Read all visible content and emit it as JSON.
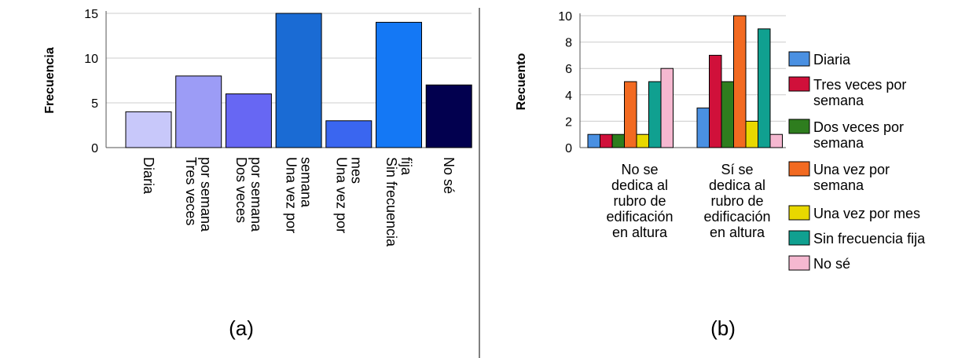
{
  "chart_data": [
    {
      "panel_label": "(a)",
      "type": "bar",
      "ylabel": "Frecuencia",
      "xlabel": "",
      "ylim": [
        0,
        15
      ],
      "yticks": [
        0,
        5,
        10,
        15
      ],
      "grid": "horizontal",
      "categories": [
        [
          "Diaria"
        ],
        [
          "Tres veces",
          "por semana"
        ],
        [
          "Dos veces",
          "por semana"
        ],
        [
          "Una vez por",
          "semana"
        ],
        [
          "Una vez por",
          "mes"
        ],
        [
          "Sin frecuencia",
          "fija"
        ],
        [
          "No sé"
        ]
      ],
      "values": [
        4,
        8,
        6,
        15,
        3,
        14,
        7
      ],
      "colors": [
        "#c8c8fa",
        "#9c9cf6",
        "#6767f3",
        "#1a6bd4",
        "#3a66f0",
        "#1478f5",
        "#02004f"
      ]
    },
    {
      "panel_label": "(b)",
      "type": "bar",
      "ylabel": "Recuento",
      "xlabel": "",
      "ylim": [
        0,
        10
      ],
      "yticks": [
        0,
        2,
        4,
        6,
        8,
        10
      ],
      "grid": "horizontal",
      "legend": "right",
      "categories": [
        [
          "No se",
          "dedica al",
          "rubro de",
          "edificación",
          "en altura"
        ],
        [
          "Sí se",
          "dedica al",
          "rubro de",
          "edificación",
          "en altura"
        ]
      ],
      "series": [
        {
          "name": [
            "Diaria"
          ],
          "color": "#4a90e2",
          "values": [
            1,
            3
          ]
        },
        {
          "name": [
            "Tres veces por",
            "semana"
          ],
          "color": "#d0103a",
          "values": [
            1,
            7
          ]
        },
        {
          "name": [
            "Dos veces por",
            "semana"
          ],
          "color": "#2e7d1e",
          "values": [
            1,
            5
          ]
        },
        {
          "name": [
            "Una vez por",
            "semana"
          ],
          "color": "#f26a21",
          "values": [
            5,
            10
          ]
        },
        {
          "name": [
            "Una vez por mes"
          ],
          "color": "#e8d800",
          "values": [
            1,
            2
          ]
        },
        {
          "name": [
            "Sin frecuencia fija"
          ],
          "color": "#10a090",
          "values": [
            5,
            9
          ]
        },
        {
          "name": [
            "No sé"
          ],
          "color": "#f5b8d0",
          "values": [
            6,
            1
          ]
        }
      ]
    }
  ]
}
